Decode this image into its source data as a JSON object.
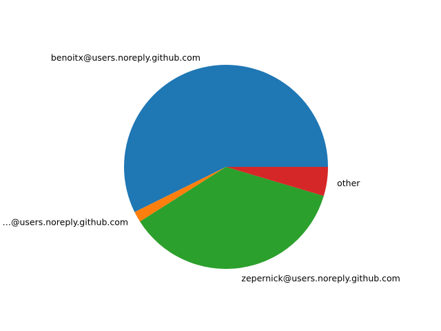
{
  "chart_data": {
    "type": "pie",
    "start_angle_deg": 0,
    "direction": "counterclockwise",
    "slices": [
      {
        "label": "benoitx@users.noreply.github.com",
        "value": 57.3,
        "color": "#1f77b4"
      },
      {
        "label": "…@users.noreply.github.com",
        "value": 1.7,
        "color": "#ff7f0e"
      },
      {
        "label": "zepernick@users.noreply.github.com",
        "value": 36.4,
        "color": "#2ca02c"
      },
      {
        "label": "other",
        "value": 4.6,
        "color": "#d62728"
      }
    ]
  }
}
